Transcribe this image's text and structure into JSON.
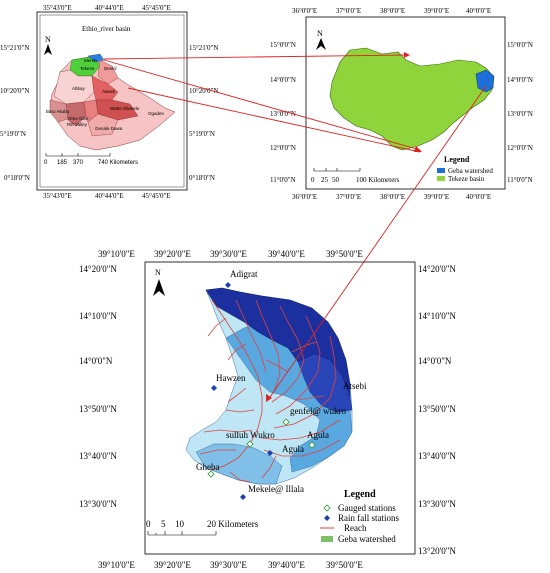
{
  "inset_ethiopia": {
    "title": "Ethio_river basin",
    "top_lons": [
      "35°43'0\"E",
      "40°44'0\"E",
      "45°45'0\"E"
    ],
    "bottom_lons": [
      "35°43'0\"E",
      "40°44'0\"E",
      "45°45'0\"E"
    ],
    "left_lats": [
      "15°21'0\"N",
      "10°20'0\"N",
      "5°19'0\"N",
      "0°18'0\"N"
    ],
    "right_lats": [
      "15°21'0\"N",
      "10°20'0\"N",
      "5°19'0\"N",
      "0°18'0\"N"
    ],
    "basins": [
      "Mereb",
      "Tekeze",
      "Denkil",
      "Abbay",
      "Awash",
      "Baro Akobo",
      "Omo Gibe",
      "Rift Valley",
      "Wabe Shebele",
      "Genale Dawa",
      "Ogaden"
    ],
    "scale_labels": [
      "0",
      "185",
      "370",
      "740 Kilometers"
    ]
  },
  "inset_tekeze": {
    "top_lons": [
      "36°0'0\"E",
      "37°0'0\"E",
      "38°0'0\"E",
      "39°0'0\"E",
      "40°0'0\"E"
    ],
    "bottom_lons": [
      "36°0'0\"E",
      "37°0'0\"E",
      "38°0'0\"E",
      "39°0'0\"E",
      "40°0'0\"E"
    ],
    "left_lats": [
      "15°0'0\"N",
      "14°0'0\"N",
      "13°0'0\"N",
      "12°0'0\"N",
      "11°0'0\"N"
    ],
    "right_lats": [
      "15°0'0\"N",
      "14°0'0\"N",
      "13°0'0\"N",
      "12°0'0\"N",
      "11°0'0\"N"
    ],
    "scale_labels": [
      "0",
      "25",
      "50",
      "100 Kilometers"
    ],
    "legend_title": "Legend",
    "legend_items": [
      {
        "label": "Geba watershed",
        "color": "#1f6fd8"
      },
      {
        "label": "Tekeze basin",
        "color": "#8fd43a"
      }
    ]
  },
  "main_map": {
    "top_lons": [
      "39°10'0\"E",
      "39°20'0\"E",
      "39°30'0\"E",
      "39°40'0\"E",
      "39°50'0\"E"
    ],
    "bottom_lons": [
      "39°10'0\"E",
      "39°20'0\"E",
      "39°30'0\"E",
      "39°40'0\"E",
      "39°50'0\"E"
    ],
    "left_lats": [
      "14°20'0\"N",
      "14°10'0\"N",
      "14°0'0\"N",
      "13°50'0\"N",
      "13°40'0\"N",
      "13°30'0\"N"
    ],
    "right_lats": [
      "14°20'0\"N",
      "14°10'0\"N",
      "14°0'0\"N",
      "13°50'0\"N",
      "13°40'0\"N",
      "13°30'0\"N",
      "13°20'0\"N"
    ],
    "stations": [
      "Adigrat",
      "Hawzen",
      "Atsebi",
      "genfel@ wukro",
      "sulluh Wukro",
      "Agula",
      "Agula",
      "Gheba",
      "Mekele@ Illala"
    ],
    "scale_labels": [
      "0",
      "5",
      "10",
      "20 Kilometers"
    ],
    "legend_title": "Legend",
    "legend_items": [
      {
        "label": "Gauged stations",
        "symbol": "green-diamond"
      },
      {
        "label": "Rain fall stations",
        "symbol": "blue-diamond"
      },
      {
        "label": "Reach",
        "symbol": "red-line"
      },
      {
        "label": "Geba watershed",
        "symbol": "green-box"
      }
    ]
  },
  "north_label": "N",
  "colors": {
    "tekeze": "#8fd43a",
    "geba": "#1f6fd8",
    "connector": "#e02020",
    "reach": "#e0423a",
    "lightblue": "#bfe6f5",
    "midblue": "#5aa8e0",
    "darkblue": "#1c2f9e"
  }
}
